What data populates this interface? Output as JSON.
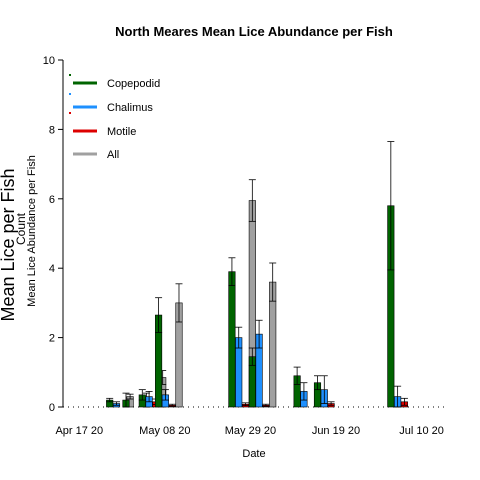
{
  "chart_data": {
    "type": "bar",
    "title": "North Meares Mean Lice Abundance per Fish",
    "xlabel": "Date",
    "ylabels": [
      "Mean Lice per Fish",
      "Count",
      "Mean Lice Abundance per Fish"
    ],
    "ylim": [
      0,
      10
    ],
    "yticks": [
      0,
      2,
      4,
      6,
      8,
      10
    ],
    "xlim": [
      "2020-04-13",
      "2020-07-16"
    ],
    "xtick_labels": [
      {
        "label": "Apr 17 20",
        "date": "2020-04-17"
      },
      {
        "label": "May 08 20",
        "date": "2020-05-08"
      },
      {
        "label": "May 29 20",
        "date": "2020-05-29"
      },
      {
        "label": "Jun 19 20",
        "date": "2020-06-19"
      },
      {
        "label": "Jul 10 20",
        "date": "2020-07-10"
      }
    ],
    "legend_position": "top-left",
    "series": [
      {
        "name": "Copepodid",
        "color": "#006400"
      },
      {
        "name": "Chalimus",
        "color": "#1E90FF"
      },
      {
        "name": "Motile",
        "color": "#DD0000"
      },
      {
        "name": "All",
        "color": "#A0A0A0"
      }
    ],
    "groups": [
      {
        "date": "2020-04-27",
        "values": [
          0.2,
          0.1,
          0.0,
          0.3
        ],
        "err": [
          0.05,
          0.05,
          0.0,
          0.07
        ]
      },
      {
        "date": "2020-05-01",
        "values": [
          0.2,
          0.0,
          0.0,
          0.2
        ],
        "err": [
          0.2,
          0.0,
          0.0,
          0.2
        ]
      },
      {
        "date": "2020-05-05",
        "values": [
          0.35,
          0.3,
          0.15,
          0.85
        ],
        "err": [
          0.15,
          0.15,
          0.08,
          0.2
        ]
      },
      {
        "date": "2020-05-09",
        "values": [
          2.65,
          0.35,
          0.05,
          3.0
        ],
        "err": [
          0.5,
          0.15,
          0.03,
          0.55
        ]
      },
      {
        "date": "2020-05-27",
        "values": [
          3.9,
          2.0,
          0.08,
          5.95
        ],
        "err": [
          0.4,
          0.3,
          0.04,
          0.6
        ]
      },
      {
        "date": "2020-06-01",
        "values": [
          1.45,
          2.1,
          0.05,
          3.6
        ],
        "err": [
          0.25,
          0.4,
          0.03,
          0.55
        ]
      },
      {
        "date": "2020-06-12",
        "values": [
          0.9,
          0.45,
          0.0,
          0.0
        ],
        "err": [
          0.25,
          0.25,
          0.0,
          0.0
        ]
      },
      {
        "date": "2020-06-17",
        "values": [
          0.7,
          0.5,
          0.1,
          0.0
        ],
        "err": [
          0.2,
          0.4,
          0.05,
          0.0
        ]
      },
      {
        "date": "2020-07-05",
        "values": [
          5.8,
          0.3,
          0.15,
          0.0
        ],
        "err": [
          1.85,
          0.3,
          0.1,
          0.0
        ]
      }
    ]
  }
}
